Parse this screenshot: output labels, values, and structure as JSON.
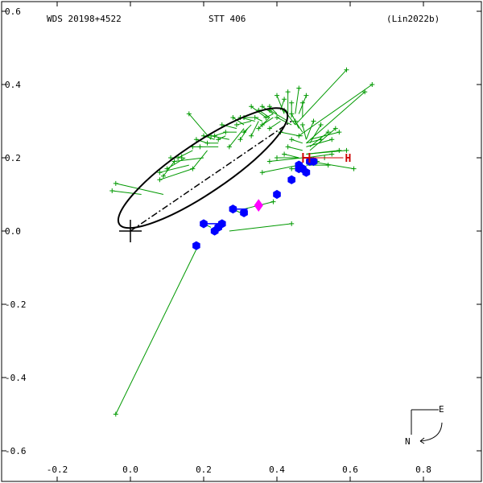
{
  "header": {
    "wds": "WDS 20198+4522",
    "name": "STT 406",
    "ref": "(Lin2022b)"
  },
  "compass": {
    "east": "E",
    "north": "N"
  },
  "legend_marks": {
    "h_label": "H"
  },
  "chart_data": {
    "type": "scatter",
    "title": "",
    "xlabel": "",
    "ylabel": "",
    "xlim": [
      -0.35,
      0.95
    ],
    "ylim": [
      -0.68,
      0.62
    ],
    "x_ticks": [
      -0.2,
      0.0,
      0.2,
      0.4,
      0.6,
      0.8
    ],
    "x_tick_labels": [
      "-0.2",
      "0.0",
      "0.2",
      "0.4",
      "0.6",
      "0.8"
    ],
    "y_ticks": [
      0.6,
      0.4,
      0.2,
      0.0,
      -0.2,
      -0.4,
      -0.6
    ],
    "y_tick_labels": [
      "0.6",
      "0.4",
      "0.2",
      "0.0",
      "-0.2",
      "-0.4",
      "-0.6"
    ],
    "primary": [
      0,
      0
    ],
    "periastron": [
      0.44,
      0.3
    ],
    "colors": {
      "orbit": "#000000",
      "residual": "#009900",
      "micrometer": "#009900",
      "speckle": "#0000ff",
      "latest": "#ff00ff",
      "h_point": "#cc0000"
    },
    "orbit_ellipse": {
      "center": [
        0.198,
        0.172
      ],
      "a": 0.275,
      "b": 0.068,
      "angle_deg": 34.0
    },
    "micrometer_points": [
      [
        -0.04,
        0.13,
        0.09,
        0.1
      ],
      [
        -0.05,
        0.11,
        0.03,
        0.1
      ],
      [
        0.08,
        0.14,
        0.17,
        0.17
      ],
      [
        0.08,
        0.16,
        0.16,
        0.18
      ],
      [
        0.1,
        0.17,
        0.15,
        0.2
      ],
      [
        0.12,
        0.19,
        0.2,
        0.2
      ],
      [
        0.14,
        0.2,
        0.14,
        0.21
      ],
      [
        0.17,
        0.17,
        0.21,
        0.22
      ],
      [
        0.19,
        0.23,
        0.24,
        0.23
      ],
      [
        0.21,
        0.24,
        0.24,
        0.24
      ],
      [
        0.22,
        0.26,
        0.27,
        0.25
      ],
      [
        0.24,
        0.25,
        0.26,
        0.26
      ],
      [
        0.26,
        0.27,
        0.29,
        0.27
      ],
      [
        0.27,
        0.23,
        0.31,
        0.28
      ],
      [
        0.3,
        0.25,
        0.32,
        0.28
      ],
      [
        0.31,
        0.27,
        0.33,
        0.29
      ],
      [
        0.33,
        0.26,
        0.35,
        0.3
      ],
      [
        0.34,
        0.31,
        0.36,
        0.3
      ],
      [
        0.35,
        0.33,
        0.38,
        0.31
      ],
      [
        0.36,
        0.29,
        0.39,
        0.31
      ],
      [
        0.38,
        0.28,
        0.41,
        0.3
      ],
      [
        0.38,
        0.33,
        0.43,
        0.3
      ],
      [
        0.4,
        0.31,
        0.44,
        0.29
      ],
      [
        0.42,
        0.33,
        0.45,
        0.29
      ],
      [
        0.44,
        0.32,
        0.46,
        0.28
      ],
      [
        0.45,
        0.3,
        0.47,
        0.27
      ],
      [
        0.46,
        0.26,
        0.47,
        0.26
      ],
      [
        0.47,
        0.29,
        0.48,
        0.25
      ],
      [
        0.5,
        0.3,
        0.48,
        0.25
      ],
      [
        0.52,
        0.29,
        0.49,
        0.24
      ],
      [
        0.54,
        0.27,
        0.49,
        0.23
      ],
      [
        0.55,
        0.25,
        0.48,
        0.23
      ],
      [
        0.56,
        0.28,
        0.49,
        0.22
      ],
      [
        0.51,
        0.19,
        0.48,
        0.2
      ],
      [
        0.53,
        0.2,
        0.49,
        0.2
      ],
      [
        0.55,
        0.21,
        0.48,
        0.2
      ],
      [
        0.57,
        0.22,
        0.48,
        0.21
      ],
      [
        0.59,
        0.22,
        0.48,
        0.21
      ],
      [
        0.4,
        0.2,
        0.46,
        0.2
      ],
      [
        0.42,
        0.21,
        0.46,
        0.2
      ],
      [
        0.38,
        0.19,
        0.47,
        0.2
      ],
      [
        0.36,
        0.16,
        0.46,
        0.18
      ],
      [
        0.43,
        0.23,
        0.47,
        0.22
      ],
      [
        0.44,
        0.25,
        0.47,
        0.24
      ],
      [
        0.41,
        0.27,
        0.46,
        0.26
      ],
      [
        0.47,
        0.35,
        0.47,
        0.31
      ],
      [
        0.44,
        0.35,
        0.44,
        0.31
      ],
      [
        0.48,
        0.37,
        0.46,
        0.32
      ],
      [
        0.46,
        0.39,
        0.45,
        0.32
      ],
      [
        0.43,
        0.38,
        0.43,
        0.32
      ],
      [
        0.4,
        0.37,
        0.42,
        0.32
      ],
      [
        0.42,
        0.36,
        0.41,
        0.33
      ],
      [
        0.38,
        0.34,
        0.4,
        0.32
      ],
      [
        0.36,
        0.34,
        0.39,
        0.32
      ],
      [
        0.37,
        0.31,
        0.39,
        0.32
      ],
      [
        0.35,
        0.28,
        0.38,
        0.31
      ],
      [
        0.33,
        0.34,
        0.37,
        0.31
      ],
      [
        0.31,
        0.31,
        0.35,
        0.31
      ],
      [
        0.3,
        0.31,
        0.34,
        0.3
      ],
      [
        0.29,
        0.29,
        0.33,
        0.3
      ],
      [
        0.28,
        0.31,
        0.31,
        0.29
      ],
      [
        0.25,
        0.29,
        0.29,
        0.28
      ],
      [
        0.23,
        0.26,
        0.26,
        0.27
      ],
      [
        0.2,
        0.26,
        0.23,
        0.25
      ],
      [
        0.18,
        0.25,
        0.21,
        0.24
      ],
      [
        0.17,
        0.23,
        0.19,
        0.23
      ],
      [
        0.13,
        0.2,
        0.17,
        0.22
      ],
      [
        0.11,
        0.2,
        0.14,
        0.2
      ],
      [
        0.09,
        0.15,
        0.12,
        0.19
      ],
      [
        0.16,
        0.32,
        0.22,
        0.25
      ],
      [
        0.59,
        0.44,
        0.45,
        0.29
      ],
      [
        0.66,
        0.4,
        0.46,
        0.26
      ],
      [
        0.64,
        0.38,
        0.48,
        0.24
      ],
      [
        0.52,
        0.25,
        0.48,
        0.24
      ],
      [
        0.54,
        0.18,
        0.48,
        0.18
      ],
      [
        0.61,
        0.17,
        0.49,
        0.19
      ],
      [
        0.57,
        0.27,
        0.49,
        0.25
      ],
      [
        0.44,
        0.17,
        0.45,
        0.17
      ],
      [
        0.39,
        0.08,
        0.31,
        0.06
      ],
      [
        0.44,
        0.02,
        0.27,
        0.0
      ],
      [
        -0.04,
        -0.5,
        0.18,
        -0.05
      ]
    ],
    "speckle_points": [
      [
        0.18,
        -0.04
      ],
      [
        0.2,
        0.02
      ],
      [
        0.23,
        0.0
      ],
      [
        0.24,
        0.01
      ],
      [
        0.25,
        0.02
      ],
      [
        0.28,
        0.06
      ],
      [
        0.31,
        0.05
      ],
      [
        0.4,
        0.1
      ],
      [
        0.44,
        0.14
      ],
      [
        0.46,
        0.18
      ],
      [
        0.47,
        0.17
      ],
      [
        0.48,
        0.16
      ],
      [
        0.49,
        0.19
      ],
      [
        0.5,
        0.19
      ],
      [
        0.46,
        0.17
      ]
    ],
    "speckle_residuals": [
      [
        0.18,
        -0.04,
        0.18,
        -0.05
      ],
      [
        0.2,
        0.02,
        0.22,
        0.01
      ],
      [
        0.28,
        0.06,
        0.3,
        0.05
      ]
    ],
    "speckle_links": [
      [
        0.2,
        0.02,
        0.25,
        0.02
      ],
      [
        0.28,
        0.06,
        0.32,
        0.06
      ]
    ],
    "latest_point": [
      0.35,
      0.07
    ],
    "h_point": [
      0.48,
      0.2
    ],
    "h_line_end": [
      0.59,
      0.2
    ]
  }
}
